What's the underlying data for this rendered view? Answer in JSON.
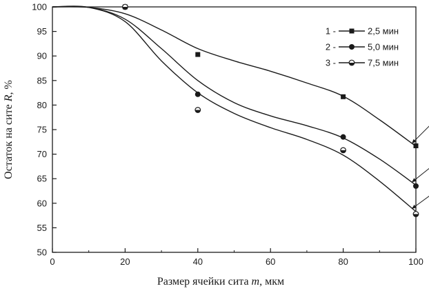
{
  "chart_data": {
    "type": "scatter",
    "xlabel_prefix": "Размер ячейки сита ",
    "xlabel_var": "m",
    "xlabel_suffix": ", мкм",
    "ylabel_prefix": "Остаток на сите ",
    "ylabel_var": "R",
    "ylabel_suffix": ", %",
    "xlim": [
      0,
      100
    ],
    "ylim": [
      50,
      100
    ],
    "xticks": [
      0,
      20,
      40,
      60,
      80,
      100
    ],
    "yticks": [
      50,
      55,
      60,
      65,
      70,
      75,
      80,
      85,
      90,
      95,
      100
    ],
    "legend_position": "top-right",
    "series": [
      {
        "name": "2,5 мин",
        "legend_prefix": "1 -",
        "marker": "square",
        "curve_label": "1",
        "points": [
          [
            20,
            100
          ],
          [
            40,
            90.3
          ],
          [
            80,
            81.7
          ],
          [
            100,
            71.7
          ]
        ],
        "fit": [
          [
            0,
            100
          ],
          [
            10,
            99.9
          ],
          [
            20,
            98.6
          ],
          [
            30,
            95.3
          ],
          [
            40,
            91.5
          ],
          [
            50,
            89.0
          ],
          [
            60,
            86.9
          ],
          [
            70,
            84.5
          ],
          [
            80,
            81.8
          ],
          [
            90,
            77.0
          ],
          [
            100,
            71.6
          ]
        ]
      },
      {
        "name": "5,0 мин",
        "legend_prefix": "2 -",
        "marker": "circle",
        "curve_label": "2",
        "points": [
          [
            20,
            100
          ],
          [
            40,
            82.2
          ],
          [
            80,
            73.5
          ],
          [
            100,
            63.5
          ]
        ],
        "fit": [
          [
            0,
            100
          ],
          [
            10,
            99.9
          ],
          [
            20,
            97.5
          ],
          [
            30,
            91.5
          ],
          [
            40,
            85.0
          ],
          [
            50,
            80.5
          ],
          [
            60,
            77.8
          ],
          [
            70,
            75.8
          ],
          [
            80,
            73.3
          ],
          [
            90,
            69.0
          ],
          [
            100,
            63.7
          ]
        ]
      },
      {
        "name": "7,5 мин",
        "legend_prefix": "3 -",
        "marker": "half-circle",
        "curve_label": "3",
        "points": [
          [
            20,
            100
          ],
          [
            40,
            79.0
          ],
          [
            80,
            70.8
          ],
          [
            100,
            57.8
          ]
        ],
        "fit": [
          [
            0,
            100
          ],
          [
            10,
            99.9
          ],
          [
            20,
            97.0
          ],
          [
            30,
            89.0
          ],
          [
            40,
            82.5
          ],
          [
            50,
            78.3
          ],
          [
            60,
            75.4
          ],
          [
            70,
            73.0
          ],
          [
            80,
            69.8
          ],
          [
            90,
            64.5
          ],
          [
            100,
            58.3
          ]
        ]
      }
    ]
  }
}
